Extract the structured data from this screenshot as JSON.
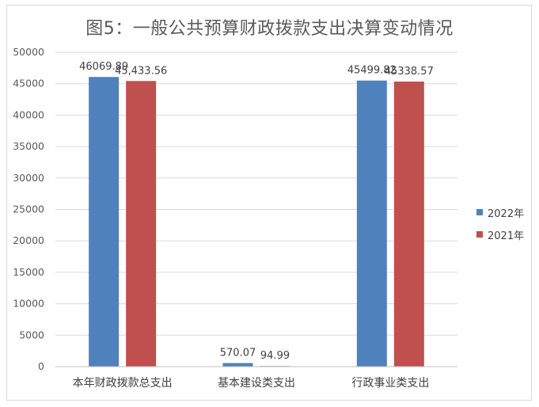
{
  "chart_data": {
    "type": "bar",
    "title": "图5：一般公共预算财政拨款支出决算变动情况",
    "categories": [
      "本年财政拨款总支出",
      "基本建设类支出",
      "行政事业类支出"
    ],
    "series": [
      {
        "name": "2022年",
        "color": "#4f81bd",
        "values": [
          46069.89,
          570.07,
          45499.82
        ],
        "labels": [
          "46069.89",
          "570.07",
          "45499.82"
        ]
      },
      {
        "name": "2021年",
        "color": "#c0504d",
        "values": [
          45433.56,
          94.99,
          45338.57
        ],
        "labels": [
          "45,433.56",
          "94.99",
          "45338.57"
        ]
      }
    ],
    "ylim": [
      0,
      50000
    ],
    "yticks": [
      0,
      5000,
      10000,
      15000,
      20000,
      25000,
      30000,
      35000,
      40000,
      45000,
      50000
    ],
    "grid": true,
    "legend": "right"
  }
}
